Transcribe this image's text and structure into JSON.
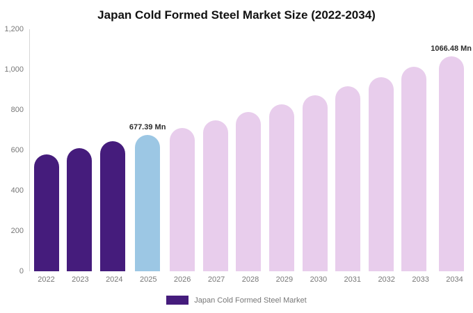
{
  "chart": {
    "title": "Japan Cold Formed Steel Market Size (2022-2034)",
    "legend_label": "Japan Cold Formed Steel Market"
  },
  "chart_data": {
    "type": "bar",
    "title": "Japan Cold Formed Steel Market Size (2022-2034)",
    "categories": [
      "2022",
      "2023",
      "2024",
      "2025",
      "2026",
      "2027",
      "2028",
      "2029",
      "2030",
      "2031",
      "2032",
      "2033",
      "2034"
    ],
    "values": [
      580,
      612,
      644,
      677.39,
      712,
      749,
      788,
      828,
      871,
      916,
      963,
      1014,
      1066.48
    ],
    "bar_colors": [
      "#451c7c",
      "#451c7c",
      "#451c7c",
      "#9cc7e4",
      "#e8cdec",
      "#e8cdec",
      "#e8cdec",
      "#e8cdec",
      "#e8cdec",
      "#e8cdec",
      "#e8cdec",
      "#e8cdec",
      "#e8cdec"
    ],
    "annotations": [
      {
        "category": "2025",
        "text": "677.39 Mn"
      },
      {
        "category": "2034",
        "text": "1066.48 Mn"
      }
    ],
    "xlabel": "",
    "ylabel": "",
    "ylim": [
      0,
      1200
    ],
    "yticks": [
      0,
      200,
      400,
      600,
      800,
      1000,
      1200
    ],
    "ytick_labels": [
      "0",
      "200",
      "400",
      "600",
      "800",
      "1,000",
      "1,200"
    ],
    "grid": false,
    "legend_position": "bottom",
    "legend_color": "#451c7c",
    "unit": "Mn"
  }
}
